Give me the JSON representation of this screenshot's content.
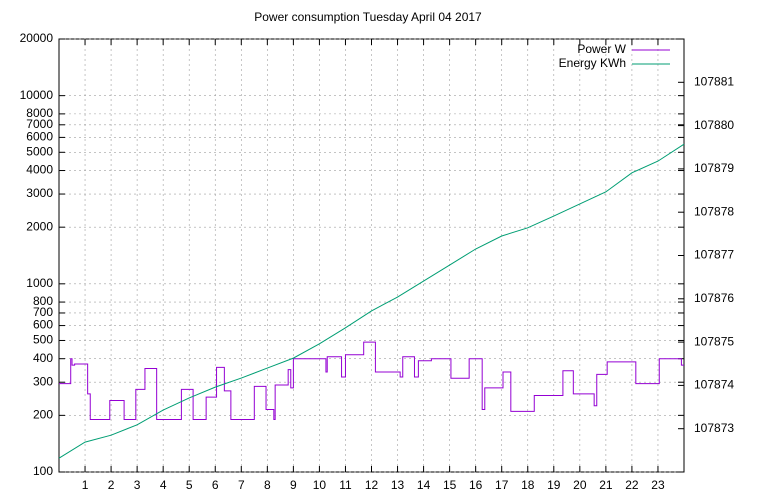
{
  "chart_data": {
    "type": "line",
    "title": "Power consumption Tuesday April 04 2017",
    "xlim": [
      0,
      24
    ],
    "xticks": [
      1,
      2,
      3,
      4,
      5,
      6,
      7,
      8,
      9,
      10,
      11,
      12,
      13,
      14,
      15,
      16,
      17,
      18,
      19,
      20,
      21,
      22,
      23
    ],
    "ylim": [
      100,
      20000
    ],
    "yscale": "log",
    "yticks": [
      100,
      200,
      300,
      400,
      500,
      600,
      700,
      800,
      1000,
      2000,
      3000,
      4000,
      5000,
      6000,
      7000,
      8000,
      10000,
      20000
    ],
    "y2lim": [
      107872,
      107882
    ],
    "y2ticks": [
      107873,
      107874,
      107875,
      107876,
      107877,
      107878,
      107879,
      107880,
      107881
    ],
    "grid": true,
    "legend": "top-right",
    "series": [
      {
        "name": "Power W",
        "color": "#9400d3",
        "x": [
          0,
          0.45,
          0.45,
          0.5,
          0.5,
          0.6,
          0.6,
          1.1,
          1.1,
          1.2,
          1.2,
          1.95,
          1.95,
          2.5,
          2.5,
          2.95,
          2.95,
          3.3,
          3.3,
          3.75,
          3.75,
          4.7,
          4.7,
          5.15,
          5.15,
          5.65,
          5.65,
          6.05,
          6.05,
          6.35,
          6.35,
          6.6,
          6.6,
          7.5,
          7.5,
          7.95,
          7.95,
          8.25,
          8.25,
          8.3,
          8.3,
          8.8,
          8.8,
          8.9,
          8.9,
          9.0,
          9.0,
          10.25,
          10.25,
          10.3,
          10.3,
          10.85,
          10.85,
          11.0,
          11.0,
          11.7,
          11.7,
          12.15,
          12.15,
          13.1,
          13.1,
          13.2,
          13.2,
          13.65,
          13.65,
          13.8,
          13.8,
          14.3,
          14.3,
          15.05,
          15.05,
          15.75,
          15.75,
          16.25,
          16.25,
          16.35,
          16.35,
          17.05,
          17.05,
          17.35,
          17.35,
          18.25,
          18.25,
          19.35,
          19.35,
          19.75,
          19.75,
          20.55,
          20.55,
          20.65,
          20.65,
          21.05,
          21.05,
          22.15,
          22.15,
          23.05,
          23.05,
          23.9,
          23.9,
          24
        ],
        "values": [
          295,
          295,
          400,
          400,
          370,
          370,
          375,
          375,
          260,
          260,
          190,
          190,
          240,
          240,
          190,
          190,
          275,
          275,
          355,
          355,
          190,
          190,
          275,
          275,
          190,
          190,
          250,
          250,
          360,
          360,
          270,
          270,
          190,
          190,
          285,
          285,
          215,
          215,
          190,
          190,
          290,
          290,
          350,
          350,
          280,
          280,
          400,
          400,
          340,
          340,
          410,
          410,
          320,
          320,
          420,
          420,
          490,
          490,
          340,
          340,
          320,
          320,
          410,
          410,
          320,
          320,
          390,
          390,
          400,
          400,
          315,
          315,
          400,
          400,
          215,
          215,
          280,
          280,
          340,
          340,
          210,
          210,
          255,
          255,
          345,
          345,
          260,
          260,
          225,
          225,
          330,
          330,
          385,
          385,
          295,
          295,
          400,
          400,
          370,
          370
        ]
      },
      {
        "name": "Energy KWh",
        "color": "#009e73",
        "axis": "y2",
        "x": [
          0,
          1,
          2,
          3,
          4,
          5,
          6,
          7,
          8,
          9,
          10,
          11,
          12,
          13,
          14,
          15,
          16,
          17,
          18,
          19,
          20,
          21,
          22,
          23,
          24
        ],
        "values": [
          107872.32,
          107872.69,
          107872.85,
          107873.09,
          107873.43,
          107873.71,
          107873.96,
          107874.17,
          107874.4,
          107874.63,
          107874.96,
          107875.33,
          107875.72,
          107876.04,
          107876.41,
          107876.78,
          107877.15,
          107877.45,
          107877.64,
          107877.91,
          107878.19,
          107878.47,
          107878.91,
          107879.18,
          107879.57
        ]
      }
    ]
  }
}
